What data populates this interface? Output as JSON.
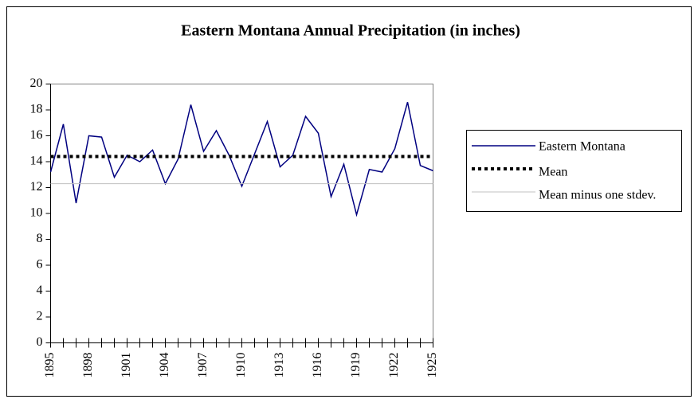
{
  "chart_data": {
    "type": "line",
    "title": "Eastern Montana Annual Precipitation (in inches)",
    "x": [
      1895,
      1896,
      1897,
      1898,
      1899,
      1900,
      1901,
      1902,
      1903,
      1904,
      1905,
      1906,
      1907,
      1908,
      1909,
      1910,
      1911,
      1912,
      1913,
      1914,
      1915,
      1916,
      1917,
      1918,
      1919,
      1920,
      1921,
      1922,
      1923,
      1924,
      1925
    ],
    "series": [
      {
        "name": "Eastern Montana",
        "color": "#000080",
        "style": "solid",
        "values": [
          13.2,
          16.9,
          10.8,
          16.0,
          15.9,
          12.8,
          14.5,
          14.0,
          14.9,
          12.3,
          14.2,
          18.4,
          14.8,
          16.4,
          14.5,
          12.1,
          14.6,
          17.1,
          13.6,
          14.5,
          17.5,
          16.2,
          11.3,
          13.8,
          9.9,
          13.4,
          13.2,
          15.0,
          18.6,
          13.7,
          13.3
        ]
      },
      {
        "name": "Mean",
        "color": "#000000",
        "style": "dotted",
        "values": [
          14.4,
          14.4,
          14.4,
          14.4,
          14.4,
          14.4,
          14.4,
          14.4,
          14.4,
          14.4,
          14.4,
          14.4,
          14.4,
          14.4,
          14.4,
          14.4,
          14.4,
          14.4,
          14.4,
          14.4,
          14.4,
          14.4,
          14.4,
          14.4,
          14.4,
          14.4,
          14.4,
          14.4,
          14.4,
          14.4,
          14.4
        ]
      },
      {
        "name": "Mean minus one stdev.",
        "color": "#c0c0c0",
        "style": "thin",
        "values": [
          12.3,
          12.3,
          12.3,
          12.3,
          12.3,
          12.3,
          12.3,
          12.3,
          12.3,
          12.3,
          12.3,
          12.3,
          12.3,
          12.3,
          12.3,
          12.3,
          12.3,
          12.3,
          12.3,
          12.3,
          12.3,
          12.3,
          12.3,
          12.3,
          12.3,
          12.3,
          12.3,
          12.3,
          12.3,
          12.3,
          12.3
        ]
      }
    ],
    "xlim": [
      1895,
      1925
    ],
    "xticks": [
      1895,
      1898,
      1901,
      1904,
      1907,
      1910,
      1913,
      1916,
      1919,
      1922,
      1925
    ],
    "ylim": [
      0,
      20
    ],
    "yticks": [
      0,
      2,
      4,
      6,
      8,
      10,
      12,
      14,
      16,
      18,
      20
    ],
    "legend": "right"
  }
}
